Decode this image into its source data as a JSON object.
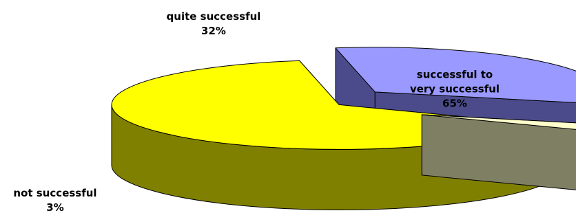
{
  "chart_data": {
    "type": "pie",
    "three_d": true,
    "exploded": true,
    "slices": [
      {
        "label": "successful to very successful",
        "label_lines": [
          "successful to",
          "very successful"
        ],
        "value": 65,
        "value_label": "65%",
        "color": "#FFFF00",
        "side_color": "#808000"
      },
      {
        "label": "quite successful",
        "label_lines": [
          "quite successful"
        ],
        "value": 32,
        "value_label": "32%",
        "color": "#9999FF",
        "side_color": "#4B4B8C"
      },
      {
        "label": "not successful",
        "label_lines": [
          "not successful"
        ],
        "value": 3,
        "value_label": "3%",
        "color": "#FFFFCC",
        "side_color": "#7F7F63"
      }
    ],
    "legend": "none",
    "title": ""
  }
}
